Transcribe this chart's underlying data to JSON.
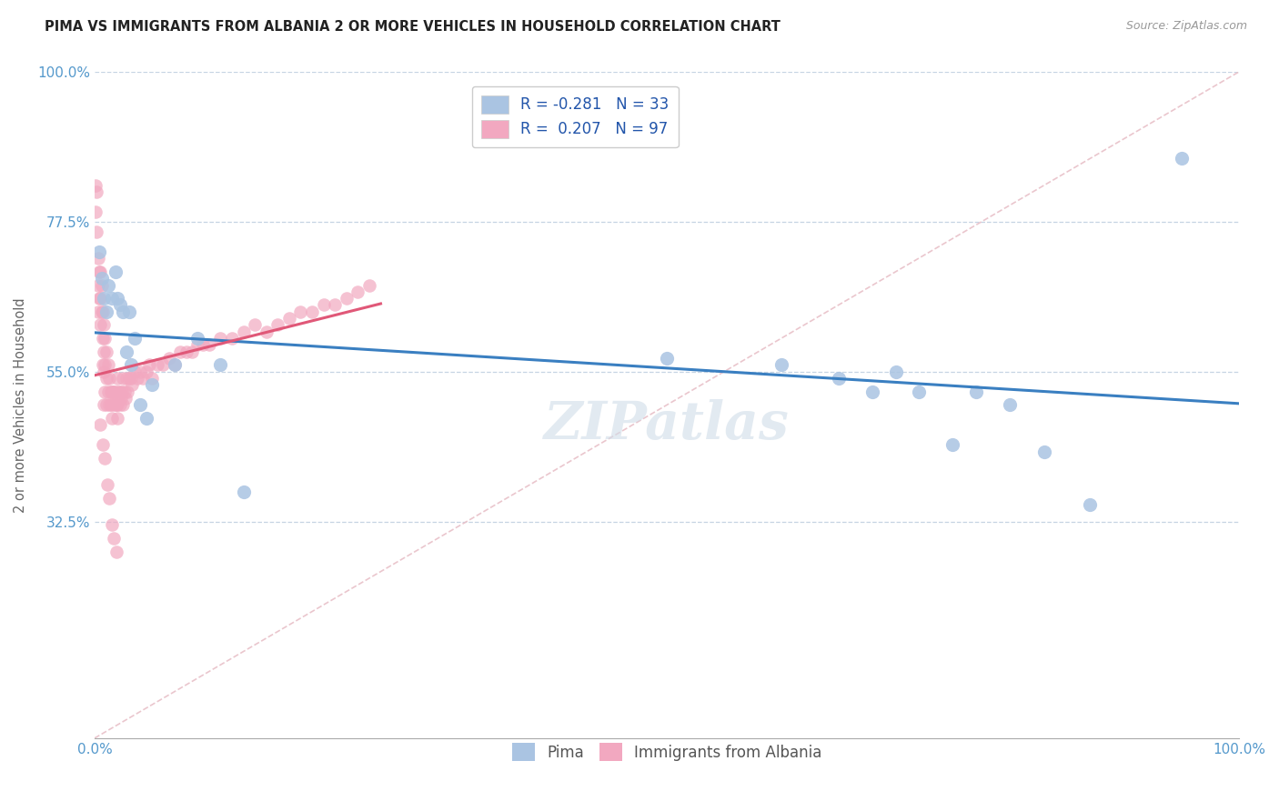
{
  "title": "PIMA VS IMMIGRANTS FROM ALBANIA 2 OR MORE VEHICLES IN HOUSEHOLD CORRELATION CHART",
  "source": "Source: ZipAtlas.com",
  "ylabel": "2 or more Vehicles in Household",
  "legend_label1": "Pima",
  "legend_label2": "Immigrants from Albania",
  "R1": -0.281,
  "N1": 33,
  "R2": 0.207,
  "N2": 97,
  "color_pima": "#aac4e2",
  "color_albania": "#f2a8c0",
  "color_pima_line": "#3a7fc1",
  "color_albania_line": "#e05878",
  "color_diagonal": "#d0bebe",
  "xlim": [
    0.0,
    1.0
  ],
  "ylim": [
    0.0,
    1.0
  ],
  "pima_x": [
    0.004,
    0.006,
    0.008,
    0.01,
    0.012,
    0.015,
    0.018,
    0.02,
    0.022,
    0.025,
    0.028,
    0.03,
    0.032,
    0.035,
    0.04,
    0.045,
    0.05,
    0.07,
    0.09,
    0.11,
    0.13,
    0.5,
    0.6,
    0.65,
    0.68,
    0.7,
    0.72,
    0.75,
    0.77,
    0.8,
    0.83,
    0.87,
    0.95
  ],
  "pima_y": [
    0.73,
    0.69,
    0.66,
    0.64,
    0.68,
    0.66,
    0.7,
    0.66,
    0.65,
    0.64,
    0.58,
    0.64,
    0.56,
    0.6,
    0.5,
    0.48,
    0.53,
    0.56,
    0.6,
    0.56,
    0.37,
    0.57,
    0.56,
    0.54,
    0.52,
    0.55,
    0.52,
    0.44,
    0.52,
    0.5,
    0.43,
    0.35,
    0.87
  ],
  "albania_x": [
    0.001,
    0.001,
    0.002,
    0.002,
    0.003,
    0.003,
    0.003,
    0.004,
    0.004,
    0.005,
    0.005,
    0.005,
    0.006,
    0.006,
    0.007,
    0.007,
    0.007,
    0.008,
    0.008,
    0.008,
    0.008,
    0.009,
    0.009,
    0.009,
    0.01,
    0.01,
    0.01,
    0.012,
    0.012,
    0.013,
    0.013,
    0.014,
    0.014,
    0.015,
    0.015,
    0.016,
    0.016,
    0.017,
    0.018,
    0.018,
    0.019,
    0.02,
    0.02,
    0.02,
    0.021,
    0.022,
    0.022,
    0.023,
    0.024,
    0.025,
    0.025,
    0.026,
    0.027,
    0.028,
    0.029,
    0.03,
    0.032,
    0.033,
    0.035,
    0.037,
    0.04,
    0.042,
    0.045,
    0.048,
    0.05,
    0.055,
    0.06,
    0.065,
    0.07,
    0.075,
    0.08,
    0.085,
    0.09,
    0.095,
    0.1,
    0.11,
    0.12,
    0.13,
    0.14,
    0.15,
    0.16,
    0.17,
    0.18,
    0.19,
    0.2,
    0.21,
    0.22,
    0.23,
    0.24,
    0.005,
    0.007,
    0.009,
    0.011,
    0.013,
    0.015,
    0.017,
    0.019
  ],
  "albania_y": [
    0.83,
    0.79,
    0.82,
    0.76,
    0.72,
    0.68,
    0.64,
    0.7,
    0.66,
    0.7,
    0.66,
    0.62,
    0.68,
    0.64,
    0.64,
    0.6,
    0.56,
    0.62,
    0.58,
    0.55,
    0.5,
    0.6,
    0.56,
    0.52,
    0.58,
    0.54,
    0.5,
    0.56,
    0.52,
    0.54,
    0.5,
    0.52,
    0.5,
    0.52,
    0.48,
    0.52,
    0.5,
    0.52,
    0.52,
    0.5,
    0.5,
    0.54,
    0.5,
    0.48,
    0.52,
    0.52,
    0.5,
    0.51,
    0.52,
    0.54,
    0.5,
    0.52,
    0.51,
    0.54,
    0.52,
    0.54,
    0.54,
    0.53,
    0.55,
    0.54,
    0.55,
    0.54,
    0.55,
    0.56,
    0.54,
    0.56,
    0.56,
    0.57,
    0.56,
    0.58,
    0.58,
    0.58,
    0.59,
    0.59,
    0.59,
    0.6,
    0.6,
    0.61,
    0.62,
    0.61,
    0.62,
    0.63,
    0.64,
    0.64,
    0.65,
    0.65,
    0.66,
    0.67,
    0.68,
    0.47,
    0.44,
    0.42,
    0.38,
    0.36,
    0.32,
    0.3,
    0.28
  ]
}
